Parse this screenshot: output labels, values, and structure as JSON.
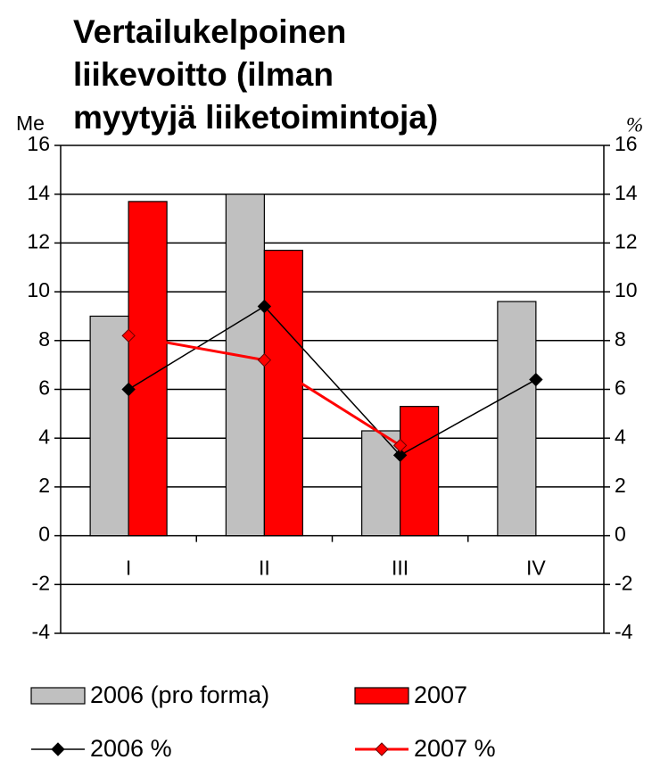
{
  "chart_data": {
    "type": "bar",
    "title": [
      "Vertailukelpoinen",
      "liikevoitto (ilman",
      "myytyjä liiketoimintoja)"
    ],
    "y_label": "Me",
    "y2_label": "%",
    "categories": [
      "I",
      "II",
      "III",
      "IV"
    ],
    "series": [
      {
        "name": "2006 (pro forma)",
        "color": "#c0c0c0",
        "values": [
          9.0,
          14.0,
          4.3,
          9.6
        ]
      },
      {
        "name": "2007",
        "color": "#ff0000",
        "values": [
          13.7,
          11.7,
          5.3,
          null
        ]
      },
      {
        "name": "2006 %",
        "type": "line",
        "axis": "y2",
        "color": "#000000",
        "values": [
          6.0,
          9.4,
          3.3,
          6.4
        ]
      },
      {
        "name": "2007 %",
        "type": "line",
        "axis": "y2",
        "color": "#ff0000",
        "values": [
          8.2,
          7.2,
          3.7,
          null
        ]
      }
    ],
    "ylim": [
      -4,
      16
    ],
    "yticks": [
      -4,
      -2,
      0,
      2,
      4,
      6,
      8,
      10,
      12,
      14,
      16
    ],
    "y2lim": [
      -4,
      16
    ],
    "y2ticks": [
      -4,
      -2,
      0,
      2,
      4,
      6,
      8,
      10,
      12,
      14,
      16
    ],
    "grid": true
  }
}
